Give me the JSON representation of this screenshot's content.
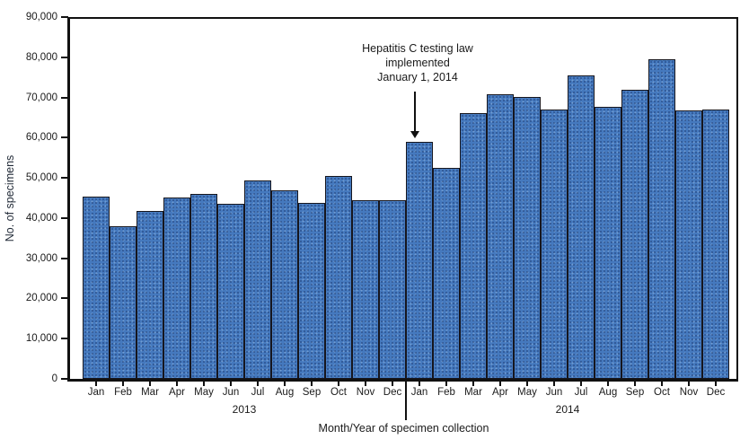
{
  "chart_data": {
    "type": "bar",
    "title": "",
    "ylabel": "No. of specimens",
    "xlabel": "Month/Year of specimen collection",
    "ylim": [
      0,
      90000
    ],
    "ytick_step": 10000,
    "grid": false,
    "legend": false,
    "bar_color": "#4579BE",
    "bar_border_color": "#16161e",
    "axis_color": "#111111",
    "text_color": "#1a1a1a",
    "groups": [
      {
        "year": "2013",
        "categories": [
          "Jan",
          "Feb",
          "Mar",
          "Apr",
          "May",
          "Jun",
          "Jul",
          "Aug",
          "Sep",
          "Oct",
          "Nov",
          "Dec"
        ],
        "values": [
          45300,
          37900,
          41800,
          45200,
          45900,
          43600,
          49400,
          46800,
          43800,
          50400,
          44400,
          44500
        ]
      },
      {
        "year": "2014",
        "categories": [
          "Jan",
          "Feb",
          "Mar",
          "Apr",
          "May",
          "Jun",
          "Jul",
          "Aug",
          "Sep",
          "Oct",
          "Nov",
          "Dec"
        ],
        "values": [
          59000,
          52400,
          66200,
          70800,
          70100,
          67000,
          75500,
          67700,
          71900,
          79400,
          66700,
          67100
        ]
      }
    ],
    "annotation": {
      "lines": [
        "Hepatitis C testing law",
        "implemented",
        "January 1, 2014"
      ],
      "points_to": "Jan 2014"
    }
  }
}
